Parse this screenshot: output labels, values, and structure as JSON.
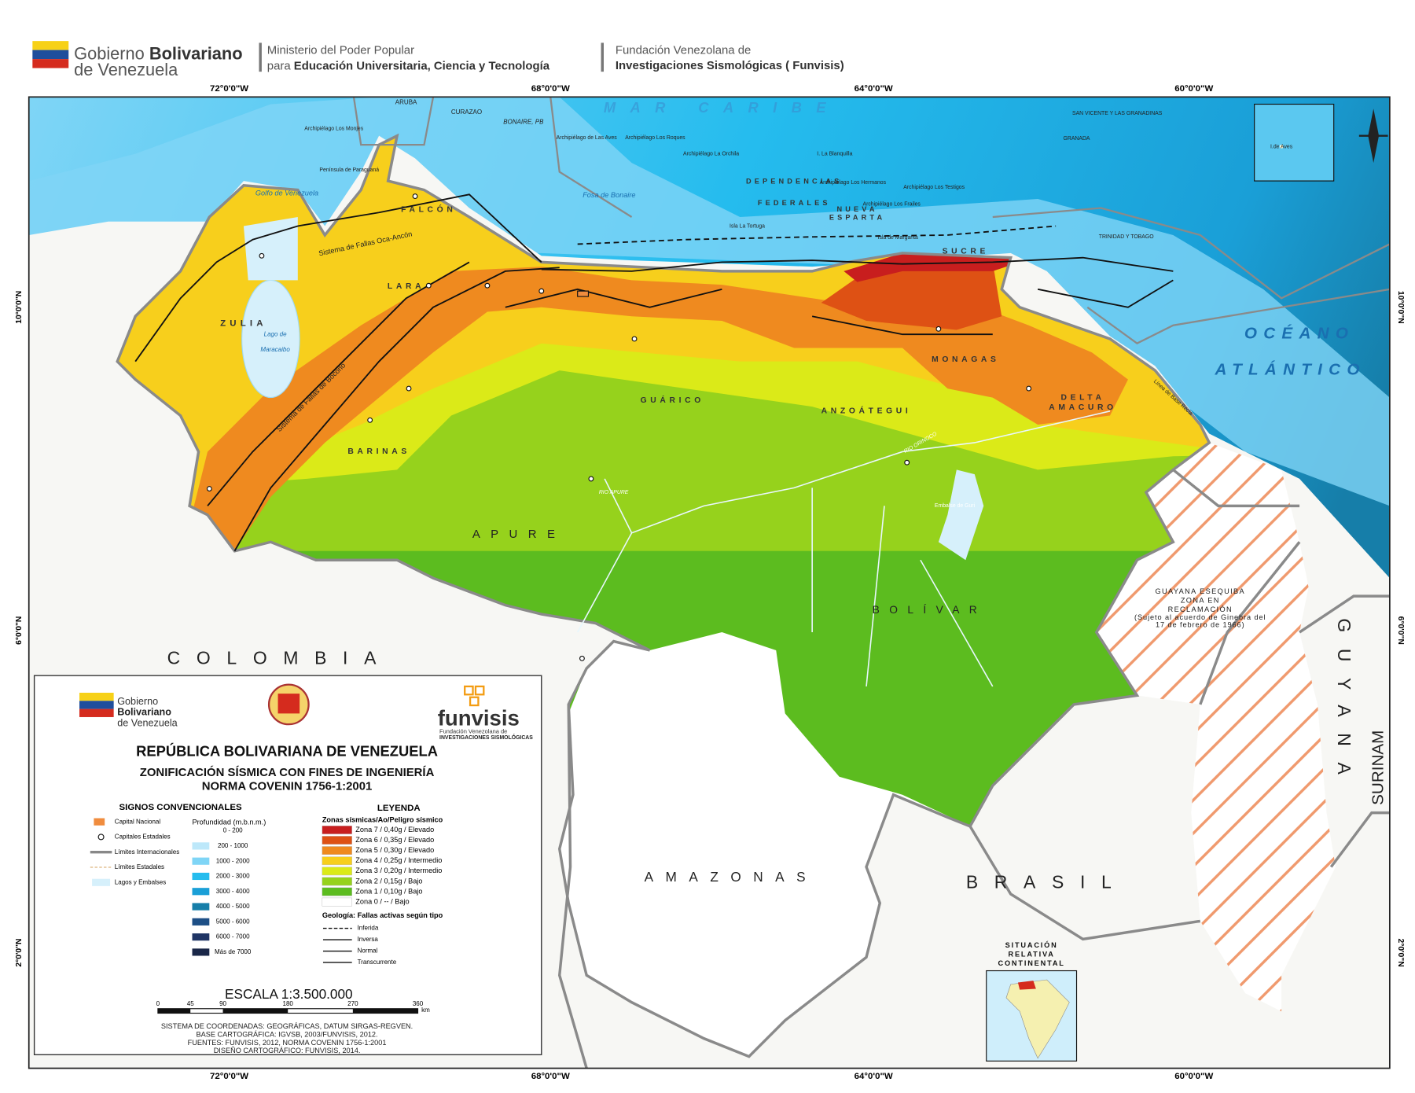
{
  "header": {
    "gov_line1": "Gobierno",
    "gov_bold": "Bolivariano",
    "gov_line2": "de Venezuela",
    "ministry_line1": "Ministerio del Poder Popular",
    "ministry_prefix": "para",
    "ministry_bold": "Educación Universitaria, Ciencia y Tecnología",
    "funvisis_line1": "Fundación Venezolana de",
    "funvisis_line2": "Investigaciones Sismológicas ( Funvisis)"
  },
  "coordinates": {
    "longitudes": [
      "72°0'0\"W",
      "68°0'0\"W",
      "64°0'0\"W",
      "60°0'0\"W"
    ],
    "latitudes": [
      "10°0'0\"N",
      "6°0'0\"N",
      "2°0'0\"N"
    ]
  },
  "map_labels": [
    "MAR CARIBE",
    "OCÉANO",
    "ATLÁNTICO",
    "COLOMBIA",
    "BRASIL",
    "AMAZONAS",
    "GUYANA",
    "SURINAM",
    "APURE",
    "BOLÍVAR",
    "GUÁRICO",
    "ANZOÁTEGUI",
    "MONAGAS",
    "BARINAS",
    "ZULIA",
    "LARA",
    "FALCÓN",
    "SUCRE",
    "DELTA",
    "AMACURO",
    "NUEVA",
    "ESPARTA",
    "DEPENDENCIAS",
    "FEDERALES",
    "Golfo de Venezuela",
    "Lago de",
    "Maracaibo",
    "Fosa de Bonaire",
    "ARUBA",
    "CURAZAO",
    "BONAIRE, PB",
    "Archipiélago Los Monjes",
    "Península de Paraguaná",
    "Archipiélago de Las Aves",
    "Archipiélago Los Roques",
    "Archipiélago La Orchila",
    "I. La Blanquilla",
    "Archipiélago Los Hermanos",
    "Archipiélago Los Testigos",
    "Archipiélago Los Frailes",
    "Isla La Tortuga",
    "Isla de Margarita",
    "SAN VICENTE Y LAS GRANADINAS",
    "GRANADA",
    "TRINIDAD Y TOBAGO",
    "Sistema de Fallas Oca-Ancón",
    "Sistema de Fallas de Boconó",
    "Línea de Base Recta",
    "I.de Aves",
    "GUAYANA ESEQUIBA",
    "ZONA EN",
    "RECLAMACIÓN",
    "(Sujeto al acuerdo de Ginebra del",
    "17 de febrero de 1966)",
    "SITUACIÓN",
    "RELATIVA",
    "CONTINENTAL",
    "RIO ORINOCO",
    "RIO APURE",
    "Embalse de Guri"
  ],
  "legend": {
    "logo_gov": [
      "Gobierno",
      "Bolivariano",
      "de Venezuela"
    ],
    "logo_funvisis": [
      "funvisis",
      "Fundación Venezolana de",
      "INVESTIGACIONES SISMOLÓGICAS"
    ],
    "title": "REPÚBLICA BOLIVARIANA DE VENEZUELA",
    "subtitle1": "ZONIFICACIÓN SÍSMICA CON FINES DE INGENIERÍA",
    "subtitle2": "NORMA COVENIN 1756-1:2001",
    "signs_title": "SIGNOS CONVENCIONALES",
    "signs": [
      "Capital Nacional",
      "Capitales Estadales",
      "Límites Internacionales",
      "Límites Estadales",
      "Lagos y Embalses"
    ],
    "depth_title": "Profundidad (m.b.n.m.)",
    "depths": [
      {
        "label": "0 - 200",
        "color": "#ffffff"
      },
      {
        "label": "200 - 1000",
        "color": "#bde8fa"
      },
      {
        "label": "1000 - 2000",
        "color": "#7fd5f6"
      },
      {
        "label": "2000 - 3000",
        "color": "#25bcee"
      },
      {
        "label": "3000 - 4000",
        "color": "#1a9fd7"
      },
      {
        "label": "4000 - 5000",
        "color": "#167ea9"
      },
      {
        "label": "5000 - 6000",
        "color": "#1d4f86"
      },
      {
        "label": "6000 - 7000",
        "color": "#1f3565"
      },
      {
        "label": "Más de 7000",
        "color": "#1a2748"
      }
    ],
    "legend_title": "LEYENDA",
    "zones_title": "Zonas sísmicas/Ao/Peligro sísmico",
    "zones": [
      {
        "label": "Zona 7 / 0,40g / Elevado",
        "color": "#c81e1e"
      },
      {
        "label": "Zona 6 / 0,35g / Elevado",
        "color": "#de5114"
      },
      {
        "label": "Zona 5 / 0,30g / Elevado",
        "color": "#ef8a1f"
      },
      {
        "label": "Zona 4 / 0,25g / Intermedio",
        "color": "#f7cf1c"
      },
      {
        "label": "Zona 3 / 0,20g / Intermedio",
        "color": "#dbea18"
      },
      {
        "label": "Zona 2 / 0,15g / Bajo",
        "color": "#96d21c"
      },
      {
        "label": "Zona 1 / 0,10g / Bajo",
        "color": "#5cbc1f"
      },
      {
        "label": "Zona 0 /    --    / Bajo",
        "color": "#ffffff"
      }
    ],
    "faults_title": "Geología: Fallas activas según tipo",
    "faults": [
      "Inferida",
      "Inversa",
      "Normal",
      "Transcurrente"
    ],
    "scale_title": "ESCALA  1:3.500.000",
    "scale_ticks": [
      "0",
      "45",
      "90",
      "180",
      "270",
      "360"
    ],
    "scale_unit": "km",
    "credits": [
      "SISTEMA DE COORDENADAS: GEOGRÁFICAS, DATUM SIRGAS-REGVEN.",
      "BASE CARTOGRÁFICA: IGVSB, 2003/FUNVISIS, 2012.",
      "FUENTES: FUNVISIS, 2012, NORMA COVENIN 1756-1:2001",
      "DISEÑO CARTOGRÁFICO: FUNVISIS, 2014."
    ]
  }
}
